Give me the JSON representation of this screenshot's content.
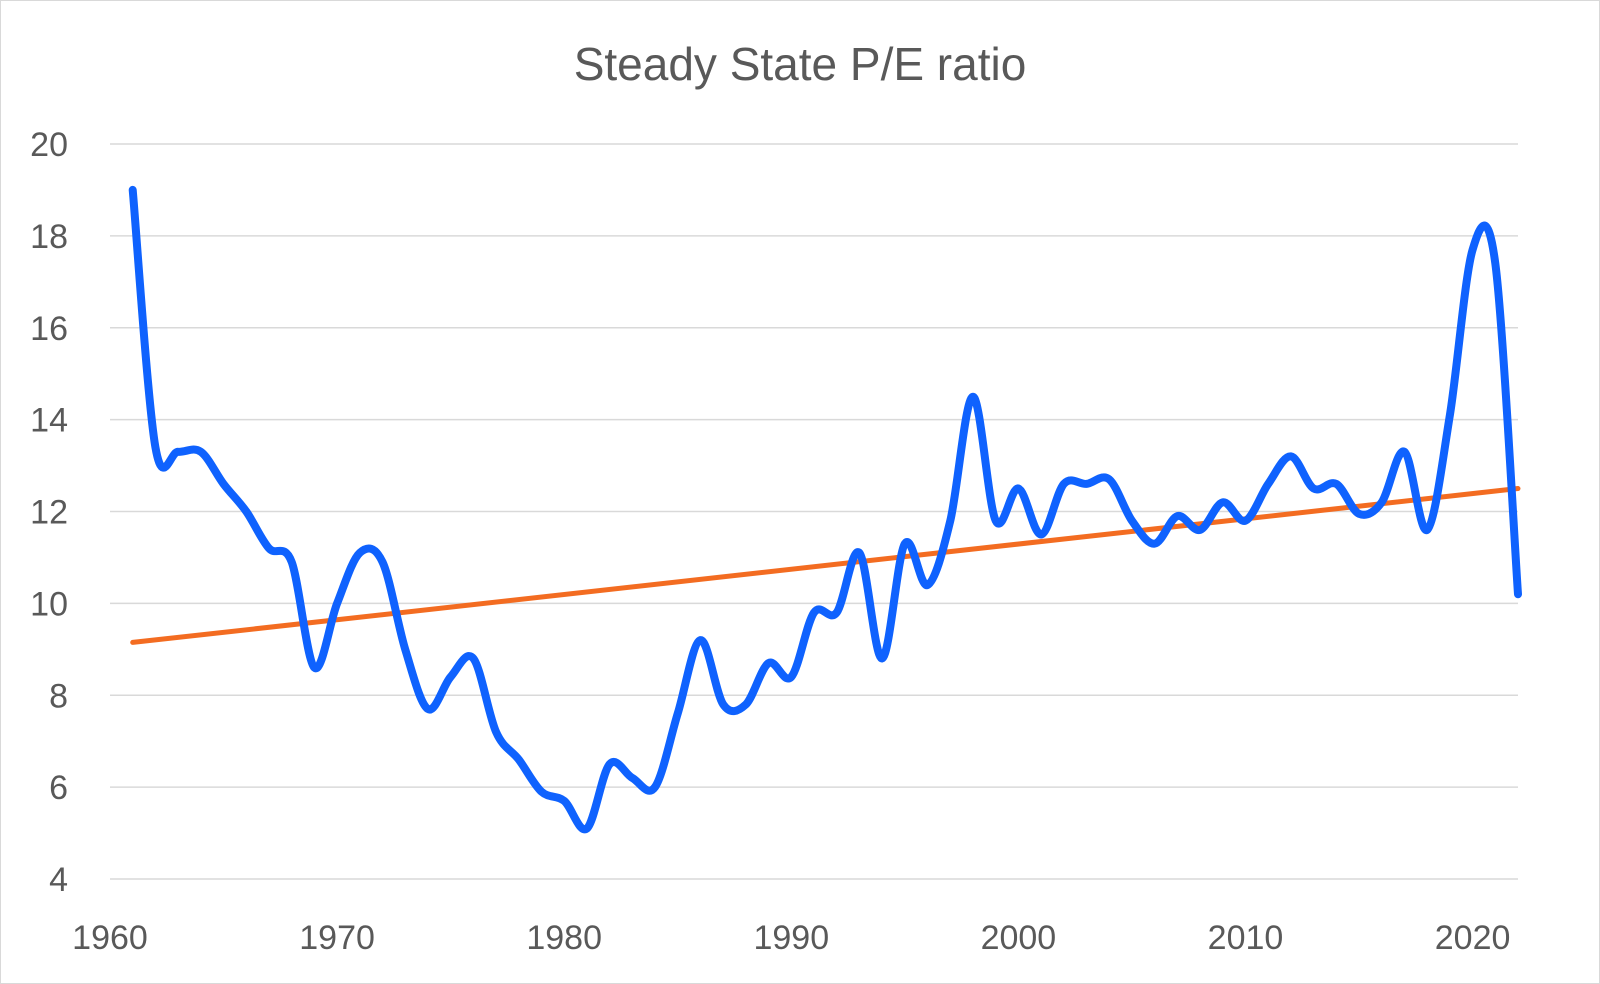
{
  "chart_data": {
    "type": "line",
    "title": "Steady State P/E ratio",
    "xlabel": "",
    "ylabel": "",
    "xlim": [
      1960,
      2022
    ],
    "ylim": [
      4,
      20
    ],
    "x_ticks": [
      1960,
      1970,
      1980,
      1990,
      2000,
      2010,
      2020
    ],
    "y_ticks": [
      4,
      6,
      8,
      10,
      12,
      14,
      16,
      18,
      20
    ],
    "grid": "horizontal",
    "legend": "none",
    "x": [
      1961,
      1962,
      1963,
      1964,
      1965,
      1966,
      1967,
      1968,
      1969,
      1970,
      1971,
      1972,
      1973,
      1974,
      1975,
      1976,
      1977,
      1978,
      1979,
      1980,
      1981,
      1982,
      1983,
      1984,
      1985,
      1986,
      1987,
      1988,
      1989,
      1990,
      1991,
      1992,
      1993,
      1994,
      1995,
      1996,
      1997,
      1998,
      1999,
      2000,
      2001,
      2002,
      2003,
      2004,
      2005,
      2006,
      2007,
      2008,
      2009,
      2010,
      2011,
      2012,
      2013,
      2014,
      2015,
      2016,
      2017,
      2018,
      2019,
      2020,
      2021,
      2022
    ],
    "series": [
      {
        "color": "#0f62fe",
        "values": [
          19.0,
          13.4,
          13.3,
          13.3,
          12.6,
          12.0,
          11.2,
          10.9,
          8.6,
          10.0,
          11.1,
          10.9,
          9.0,
          7.7,
          8.4,
          8.8,
          7.2,
          6.6,
          5.9,
          5.7,
          5.1,
          6.5,
          6.2,
          6.0,
          7.6,
          9.2,
          7.8,
          7.8,
          8.7,
          8.4,
          9.8,
          9.8,
          11.1,
          8.8,
          11.3,
          10.4,
          11.8,
          14.5,
          11.8,
          12.5,
          11.5,
          12.6,
          12.6,
          12.7,
          11.8,
          11.3,
          11.9,
          11.6,
          12.2,
          11.8,
          12.6,
          13.2,
          12.5,
          12.6,
          11.95,
          12.2,
          13.3,
          11.6,
          14.1,
          17.7,
          17.4,
          10.2
        ]
      },
      {
        "color": "#f36c21",
        "values_at_ends": [
          9.15,
          12.5
        ]
      }
    ]
  }
}
